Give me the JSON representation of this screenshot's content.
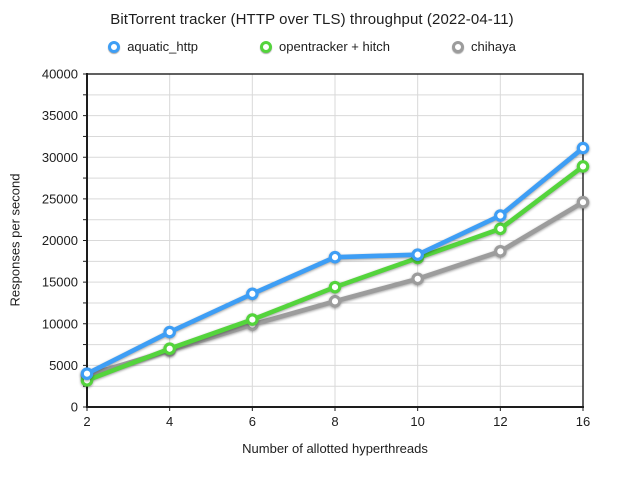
{
  "chart_data": {
    "type": "line",
    "title": "BitTorrent tracker (HTTP over TLS) throughput (2022-04-11)",
    "xlabel": "Number of allotted hyperthreads",
    "ylabel": "Responses per second",
    "categories": [
      "2",
      "4",
      "6",
      "8",
      "10",
      "12",
      "16"
    ],
    "ylim": [
      0,
      40000
    ],
    "y_major_step": 5000,
    "y_minor_step": 2500,
    "y_tick_labels": [
      "0",
      "5000",
      "10000",
      "15000",
      "20000",
      "25000",
      "30000",
      "35000",
      "40000"
    ],
    "grid": true,
    "legend_position": "top",
    "series": [
      {
        "name": "aquatic_http",
        "color": "#3E9EF5",
        "values": [
          4000,
          9000,
          13600,
          18000,
          18300,
          23000,
          31100
        ]
      },
      {
        "name": "opentracker + hitch",
        "color": "#54D43C",
        "values": [
          3200,
          7000,
          10500,
          14400,
          17900,
          21400,
          28900
        ]
      },
      {
        "name": "chihaya",
        "color": "#9C9C9C",
        "values": [
          3800,
          6800,
          9900,
          12700,
          15400,
          18700,
          24600
        ]
      }
    ],
    "colors": {
      "grid": "#D9D9D9",
      "frame": "#1D1D1D",
      "text": "#1D1D1D",
      "marker_fill": "#FFFFFF"
    }
  }
}
